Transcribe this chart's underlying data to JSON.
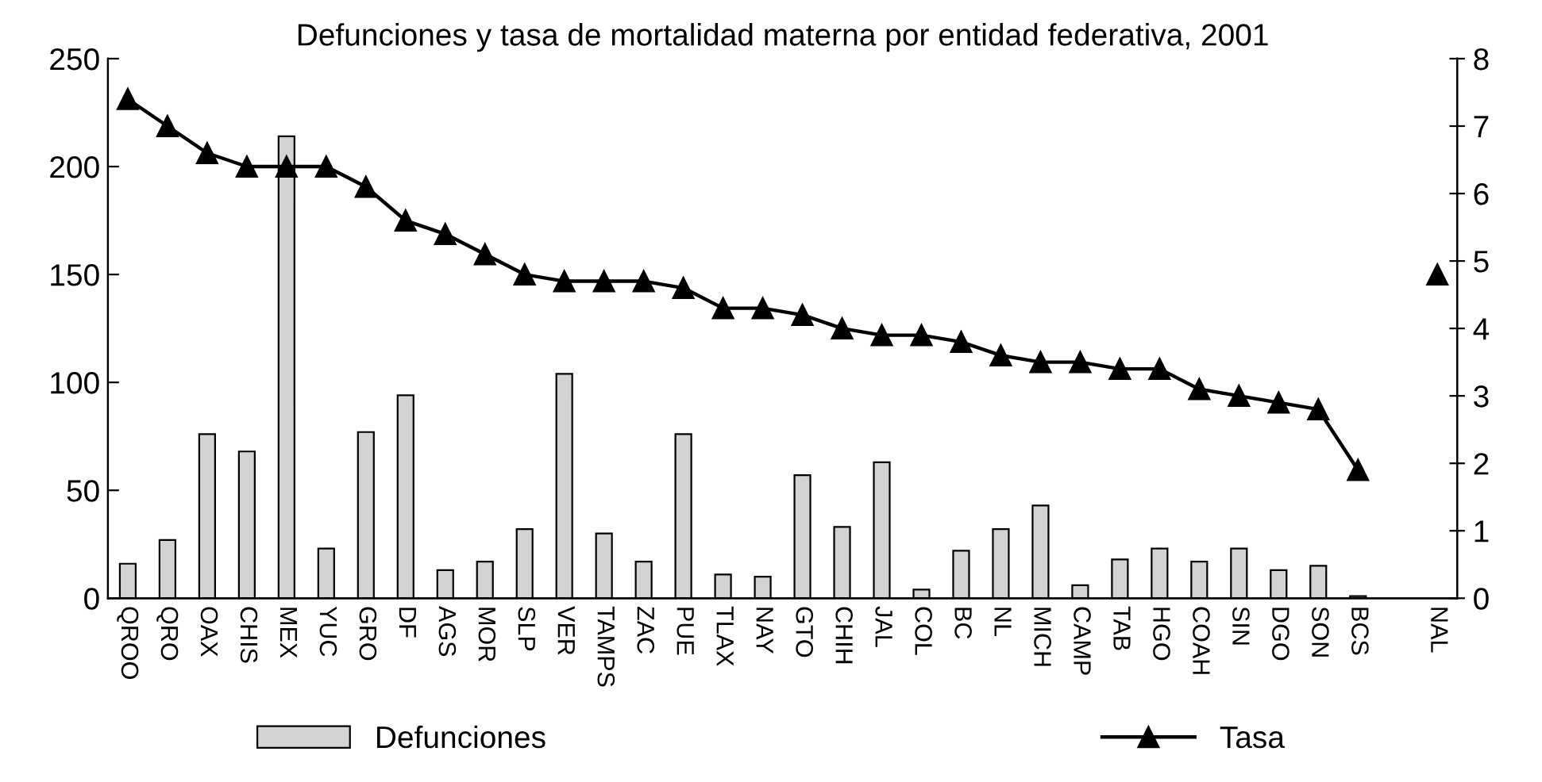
{
  "chart_data": {
    "type": "bar",
    "title": "Defunciones y tasa de mortalidad materna por entidad federativa, 2001",
    "categories": [
      "QROO",
      "QRO",
      "OAX",
      "CHIS",
      "MEX",
      "YUC",
      "GRO",
      "DF",
      "AGS",
      "MOR",
      "SLP",
      "VER",
      "TAMPS",
      "ZAC",
      "PUE",
      "TLAX",
      "NAY",
      "GTO",
      "CHIH",
      "JAL",
      "COL",
      "BC",
      "NL",
      "MICH",
      "CAMP",
      "TAB",
      "HGO",
      "COAH",
      "SIN",
      "DGO",
      "SON",
      "BCS",
      null,
      "NAL"
    ],
    "series": [
      {
        "name": "Defunciones",
        "color": "#d3d3d3",
        "values": [
          16,
          27,
          76,
          68,
          214,
          23,
          77,
          94,
          13,
          17,
          32,
          104,
          30,
          17,
          76,
          11,
          10,
          57,
          33,
          63,
          4,
          22,
          32,
          43,
          6,
          18,
          23,
          17,
          23,
          13,
          15,
          1,
          null,
          null
        ]
      },
      {
        "name": "Tasa",
        "type": "line",
        "axis": "y2",
        "color": "#000000",
        "marker": "triangle",
        "values": [
          7.4,
          7.0,
          6.6,
          6.4,
          6.4,
          6.4,
          6.1,
          5.6,
          5.4,
          5.1,
          4.8,
          4.7,
          4.7,
          4.7,
          4.6,
          4.3,
          4.3,
          4.2,
          4.0,
          3.9,
          3.9,
          3.8,
          3.6,
          3.5,
          3.5,
          3.4,
          3.4,
          3.1,
          3.0,
          2.9,
          2.8,
          1.9,
          null,
          4.8
        ]
      }
    ],
    "ylim": [
      0,
      250
    ],
    "yticks": [
      0,
      50,
      100,
      150,
      200,
      250
    ],
    "y2lim": [
      0,
      8
    ],
    "y2ticks": [
      0,
      1,
      2,
      3,
      4,
      5,
      6,
      7,
      8
    ],
    "grid": false,
    "legend": "bottom"
  }
}
